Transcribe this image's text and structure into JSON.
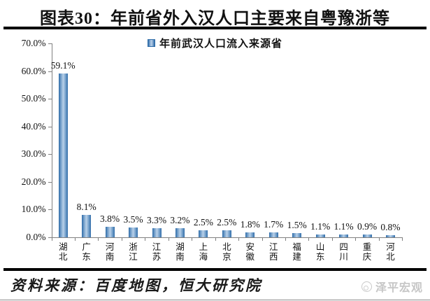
{
  "title": "图表30：年前省外入汉人口主要来自粤豫浙等",
  "legend": {
    "label": "年前武汉人口流入来源省",
    "marker_color": "#2e6ca8"
  },
  "footer": {
    "source": "资料来源：百度地图，恒大研究院",
    "watermark": "泽平宏观"
  },
  "colors": {
    "bar_edge": "#2e6ca8",
    "bar_center": "#b9d1e9",
    "axis": "#808080",
    "rule": "#000000",
    "watermark_gray": "#c6c6c6"
  },
  "chart_data": {
    "type": "bar",
    "title": "图表30：年前省外入汉人口主要来自粤豫浙等",
    "legend_entries": [
      "年前武汉人口流入来源省"
    ],
    "legend_position": "top",
    "grid": false,
    "categories": [
      "湖北",
      "广东",
      "河南",
      "浙江",
      "江苏",
      "湖南",
      "上海",
      "北京",
      "安徽",
      "江西",
      "福建",
      "山东",
      "四川",
      "重庆",
      "河北"
    ],
    "values": [
      59.1,
      8.1,
      3.8,
      3.5,
      3.3,
      3.2,
      2.5,
      2.5,
      1.8,
      1.7,
      1.5,
      1.1,
      1.1,
      0.9,
      0.8
    ],
    "value_labels": [
      "59.1%",
      "8.1%",
      "3.8%",
      "3.5%",
      "3.3%",
      "3.2%",
      "2.5%",
      "2.5%",
      "1.8%",
      "1.7%",
      "1.5%",
      "1.1%",
      "1.1%",
      "0.9%",
      "0.8%"
    ],
    "xlabel": "",
    "ylabel": "",
    "ylim": [
      0,
      70
    ],
    "ytick_values": [
      0,
      10,
      20,
      30,
      40,
      50,
      60,
      70
    ],
    "ytick_labels": [
      "0.0%",
      "10.0%",
      "20.0%",
      "30.0%",
      "40.0%",
      "50.0%",
      "60.0%",
      "70.0%"
    ]
  }
}
